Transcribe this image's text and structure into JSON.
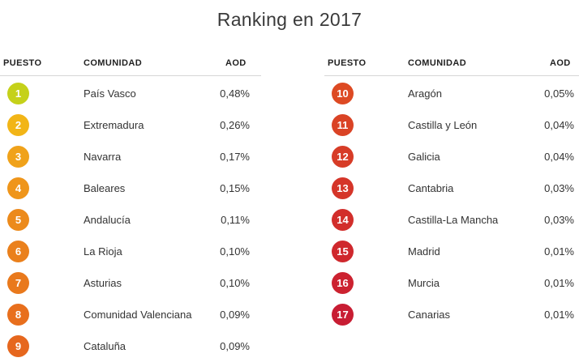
{
  "title": "Ranking en 2017",
  "headers": {
    "rank": "PUESTO",
    "community": "COMUNIDAD",
    "value": "AOD"
  },
  "left_rows": [
    {
      "rank": "1",
      "name": "País Vasco",
      "value": "0,48%",
      "color": "#c5d11a"
    },
    {
      "rank": "2",
      "name": "Extremadura",
      "value": "0,26%",
      "color": "#f2b517"
    },
    {
      "rank": "3",
      "name": "Navarra",
      "value": "0,17%",
      "color": "#f0a21a"
    },
    {
      "rank": "4",
      "name": "Baleares",
      "value": "0,15%",
      "color": "#ef951a"
    },
    {
      "rank": "5",
      "name": "Andalucía",
      "value": "0,11%",
      "color": "#ec8a1b"
    },
    {
      "rank": "6",
      "name": "La Rioja",
      "value": "0,10%",
      "color": "#ea801c"
    },
    {
      "rank": "7",
      "name": "Asturias",
      "value": "0,10%",
      "color": "#e9791c"
    },
    {
      "rank": "8",
      "name": "Comunidad Valenciana",
      "value": "0,09%",
      "color": "#e86f1d"
    },
    {
      "rank": "9",
      "name": "Cataluña",
      "value": "0,09%",
      "color": "#e6671e"
    }
  ],
  "right_rows": [
    {
      "rank": "10",
      "name": "Aragón",
      "value": "0,05%",
      "color": "#dd4a23"
    },
    {
      "rank": "11",
      "name": "Castilla y León",
      "value": "0,04%",
      "color": "#da4325"
    },
    {
      "rank": "12",
      "name": "Galicia",
      "value": "0,04%",
      "color": "#d73c27"
    },
    {
      "rank": "13",
      "name": "Cantabria",
      "value": "0,03%",
      "color": "#d53529"
    },
    {
      "rank": "14",
      "name": "Castilla-La Mancha",
      "value": "0,03%",
      "color": "#d22e2b"
    },
    {
      "rank": "15",
      "name": "Madrid",
      "value": "0,01%",
      "color": "#cf282d"
    },
    {
      "rank": "16",
      "name": "Murcia",
      "value": "0,01%",
      "color": "#cc2230"
    },
    {
      "rank": "17",
      "name": "Canarias",
      "value": "0,01%",
      "color": "#c81d33"
    }
  ]
}
